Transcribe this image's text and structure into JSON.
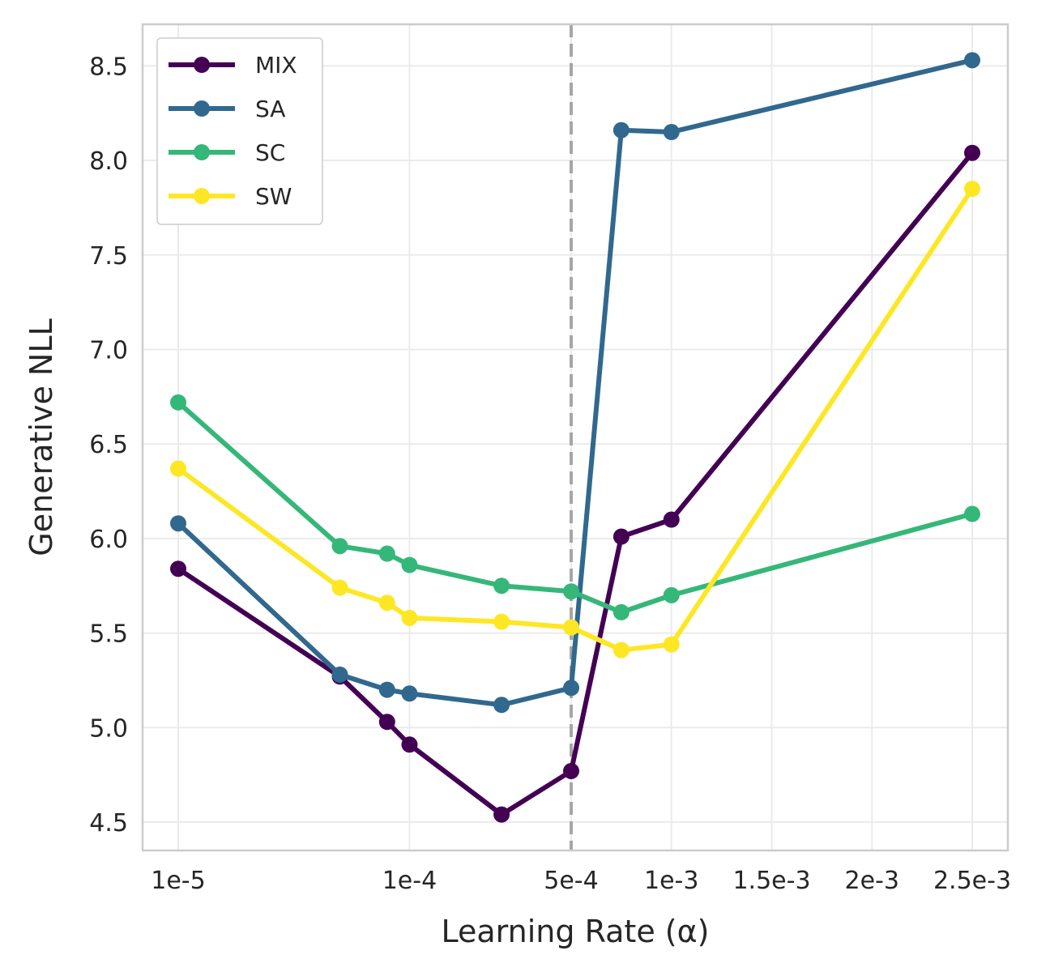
{
  "chart_data": {
    "type": "line",
    "title": "",
    "xlabel": "Learning Rate (α)",
    "ylabel": "Generative NLL",
    "ylim": [
      4.35,
      8.72
    ],
    "y_ticks": [
      4.5,
      5.0,
      5.5,
      6.0,
      6.5,
      7.0,
      7.5,
      8.0,
      8.5
    ],
    "x_ticks": [
      {
        "value": 1e-05,
        "label": "1e-5"
      },
      {
        "value": 0.0001,
        "label": "1e-4"
      },
      {
        "value": 0.0005,
        "label": "5e-4"
      },
      {
        "value": 0.001,
        "label": "1e-3"
      },
      {
        "value": 0.0015,
        "label": "1.5e-3"
      },
      {
        "value": 0.002,
        "label": "2e-3"
      },
      {
        "value": 0.0025,
        "label": "2.5e-3"
      }
    ],
    "x": [
      1e-05,
      5e-05,
      8e-05,
      0.0001,
      0.00025,
      0.0005,
      0.00075,
      0.001,
      0.0025
    ],
    "reference_line": {
      "x": 0.0005,
      "style": "dashed",
      "color": "#a6a6a6"
    },
    "grid": true,
    "legend_position": "top-left",
    "series": [
      {
        "name": "MIX",
        "color": "#440154",
        "values": [
          5.84,
          5.27,
          5.03,
          4.91,
          4.54,
          4.77,
          6.01,
          6.1,
          8.04
        ]
      },
      {
        "name": "SA",
        "color": "#31688e",
        "values": [
          6.08,
          5.28,
          5.2,
          5.18,
          5.12,
          5.21,
          8.16,
          8.15,
          8.53
        ]
      },
      {
        "name": "SC",
        "color": "#35b779",
        "values": [
          6.72,
          5.96,
          5.92,
          5.86,
          5.75,
          5.72,
          5.61,
          5.7,
          6.13
        ]
      },
      {
        "name": "SW",
        "color": "#fde725",
        "values": [
          6.37,
          5.74,
          5.66,
          5.58,
          5.56,
          5.53,
          5.41,
          5.44,
          7.85
        ]
      }
    ]
  }
}
